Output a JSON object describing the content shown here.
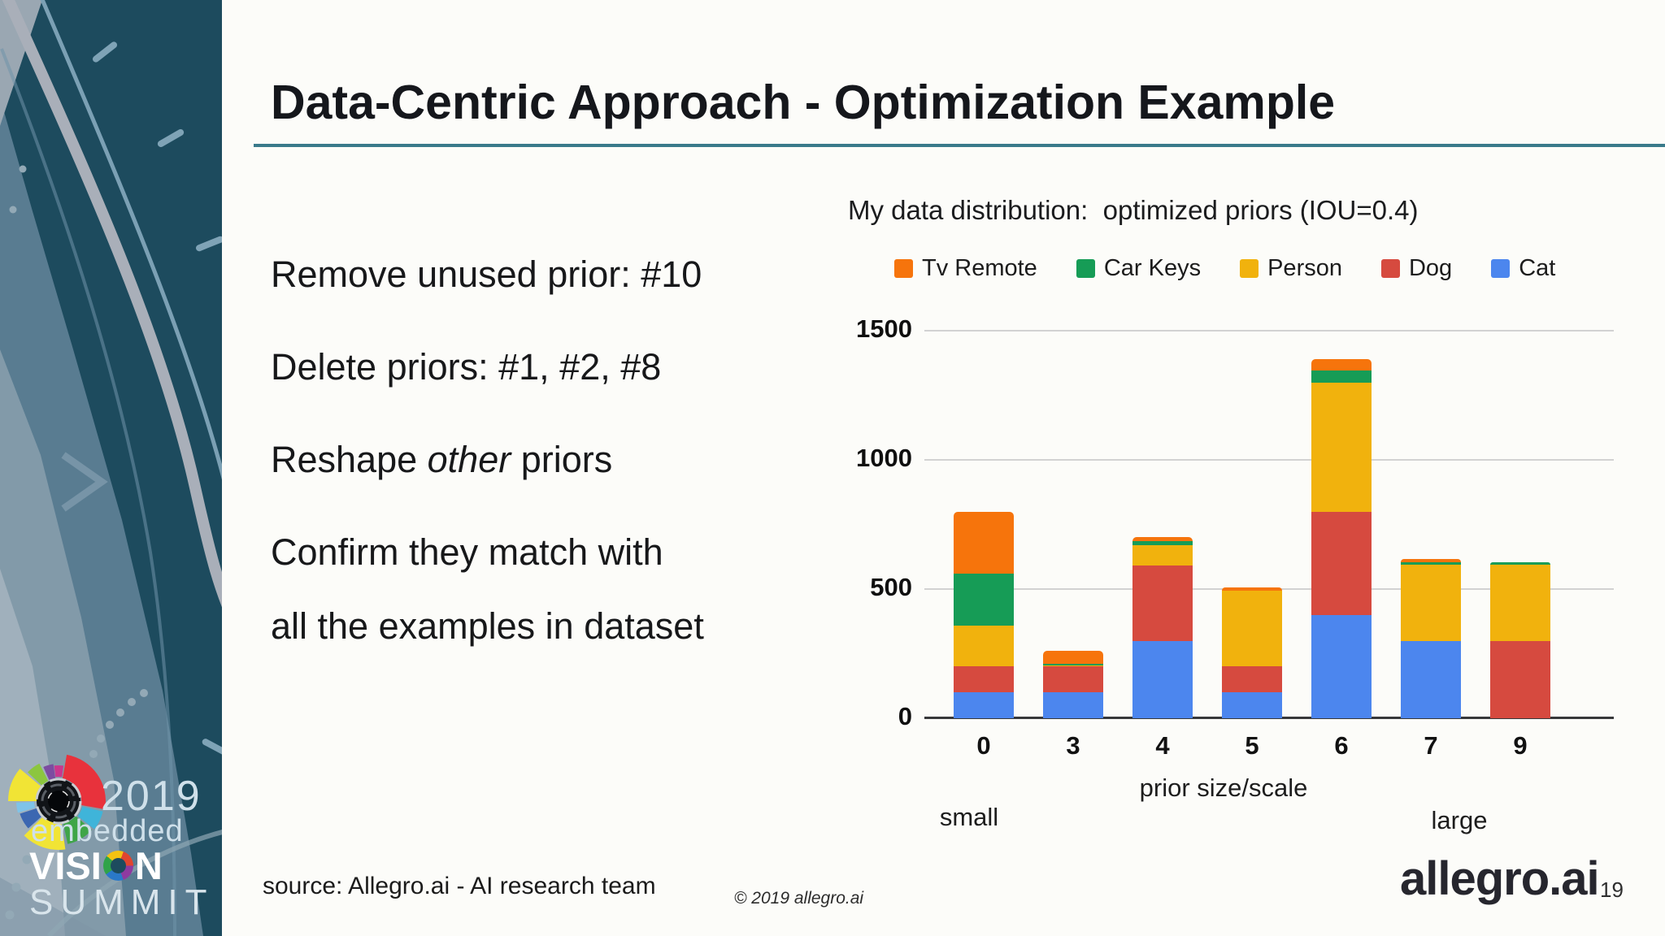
{
  "slide": {
    "title": "Data-Centric Approach - Optimization Example",
    "bullets": {
      "b1": "Remove unused prior: #10",
      "b2": "Delete priors: #1, #2, #8",
      "b3_pre": "Reshape ",
      "b3_italic": "other",
      "b3_post": " priors",
      "b4_line1": "Confirm they match with",
      "b4_line2": "all the examples in dataset"
    },
    "footer": {
      "source": "source: Allegro.ai - AI research team",
      "copyright": "© 2019 allegro.ai",
      "wordmark": "allegro.ai",
      "page_number": "19"
    }
  },
  "sidebar": {
    "logo_year": "2019",
    "logo_embedded": "embedded",
    "logo_vision_pre": "VISI",
    "logo_vision_post": "N",
    "logo_summit": "SUMMIT"
  },
  "chart_data": {
    "type": "bar",
    "stacked": true,
    "title": "My data distribution:  optimized priors (IOU=0.4)",
    "categories": [
      "0",
      "3",
      "4",
      "5",
      "6",
      "7",
      "9"
    ],
    "series": [
      {
        "name": "Tv Remote",
        "color": "#F6740C",
        "values": [
          240,
          50,
          15,
          10,
          45,
          10,
          0
        ]
      },
      {
        "name": "Car Keys",
        "color": "#169C56",
        "values": [
          200,
          5,
          15,
          0,
          45,
          10,
          10
        ]
      },
      {
        "name": "Person",
        "color": "#F1B20D",
        "values": [
          160,
          5,
          80,
          295,
          500,
          295,
          295
        ]
      },
      {
        "name": "Dog",
        "color": "#D64A3F",
        "values": [
          100,
          100,
          290,
          100,
          400,
          0,
          300
        ]
      },
      {
        "name": "Cat",
        "color": "#4C86EE",
        "values": [
          100,
          100,
          300,
          100,
          400,
          300,
          0
        ]
      }
    ],
    "stack_order_bottom_to_top": [
      "Cat",
      "Dog",
      "Person",
      "Car Keys",
      "Tv Remote"
    ],
    "totals": [
      800,
      260,
      700,
      505,
      1390,
      615,
      605
    ],
    "xlabel": "prior size/scale",
    "x_annotation_left": "small",
    "x_annotation_right": "large",
    "yticks": [
      0,
      500,
      1000,
      1500
    ],
    "ylim": [
      0,
      1590
    ],
    "legend_position": "top",
    "grid": true
  }
}
